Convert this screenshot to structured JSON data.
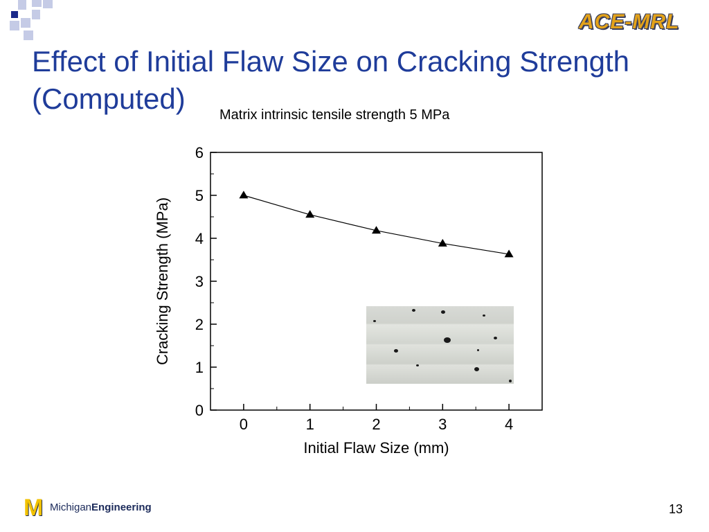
{
  "slide": {
    "title": "Effect of Initial Flaw Size on Cracking Strength (Computed)",
    "subtitle": "Matrix intrinsic tensile strength 5 MPa",
    "logo_text": "ACE-MRL",
    "footer_brand_prefix": "Michigan",
    "footer_brand_bold": "Engineering",
    "page_number": "13",
    "title_color": "#1f3c9a",
    "logo_color": "#e3a21a"
  },
  "chart_data": {
    "type": "line",
    "x": [
      0,
      1,
      2,
      3,
      4
    ],
    "series": [
      {
        "values": [
          5.0,
          4.55,
          4.18,
          3.88,
          3.63
        ],
        "marker": "triangle"
      }
    ],
    "xlabel": "Initial Flaw Size (mm)",
    "ylabel": "Cracking Strength (MPa)",
    "xlim": [
      -0.5,
      4.5
    ],
    "ylim": [
      0,
      6
    ],
    "xticks": [
      "0",
      "1",
      "2",
      "3",
      "4"
    ],
    "yticks": [
      "0",
      "1",
      "2",
      "3",
      "4",
      "5",
      "6"
    ],
    "grid": false,
    "legend": "none"
  }
}
